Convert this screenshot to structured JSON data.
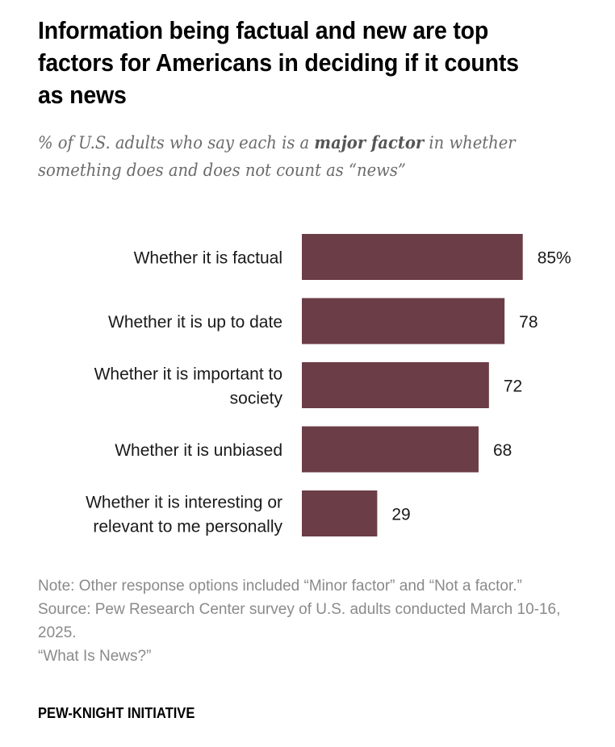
{
  "chart_data": {
    "type": "bar",
    "orientation": "horizontal",
    "title": "Information being factual and new are top factors for Americans in deciding if it counts as news",
    "subtitle_parts": [
      "% of U.S. adults who say each is a ",
      "major factor",
      " in whether something does and does not count as “news”"
    ],
    "categories": [
      [
        "Whether it is factual"
      ],
      [
        "Whether it is up to date"
      ],
      [
        "Whether it is important to",
        "society"
      ],
      [
        "Whether it is unbiased"
      ],
      [
        "Whether it is interesting or",
        "relevant to me personally"
      ]
    ],
    "values": [
      85,
      78,
      72,
      68,
      29
    ],
    "value_labels": [
      "85%",
      "78",
      "72",
      "68",
      "29"
    ],
    "xlim": [
      0,
      100
    ],
    "xlabel": "",
    "ylabel": "",
    "grid": false,
    "bar_color": "#6b3d46"
  },
  "notes": [
    "Note: Other response options included “Minor factor” and “Not a factor.”",
    "Source: Pew Research Center survey of U.S. adults conducted March 10-16, 2025.",
    "“What Is News?”"
  ],
  "brand": "PEW-KNIGHT INITIATIVE"
}
